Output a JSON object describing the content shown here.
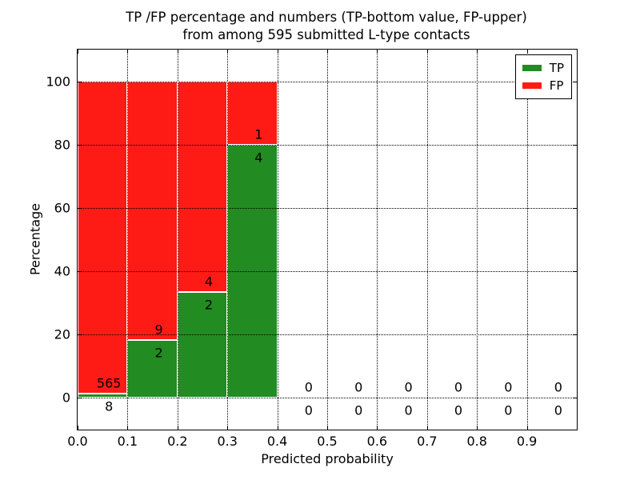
{
  "chart_data": {
    "type": "bar",
    "stacked": true,
    "normalized": "percentage",
    "title_line1": "TP /FP percentage and numbers (TP-bottom value, FP-upper)",
    "title_line2": "from among 595 submitted L-type contacts",
    "xlabel": "Predicted probability",
    "ylabel": "Percentage",
    "xlim": [
      0.0,
      1.0
    ],
    "ylim": [
      -10,
      110
    ],
    "x_tick_labels": [
      "0.0",
      "0.1",
      "0.2",
      "0.3",
      "0.4",
      "0.5",
      "0.6",
      "0.7",
      "0.8",
      "0.9"
    ],
    "x_tick_values": [
      0.0,
      0.1,
      0.2,
      0.3,
      0.4,
      0.5,
      0.6,
      0.7,
      0.8,
      0.9
    ],
    "y_tick_labels": [
      "0",
      "20",
      "40",
      "60",
      "80",
      "100"
    ],
    "y_tick_values": [
      0,
      20,
      40,
      60,
      80,
      100
    ],
    "grid": true,
    "grid_style": "dotted",
    "legend_position": "upper right",
    "legend": [
      {
        "name": "TP",
        "color": "#228b22"
      },
      {
        "name": "FP",
        "color": "#fe1b16"
      }
    ],
    "colors": {
      "tp": "#228b22",
      "fp": "#fe1b16",
      "bar_edge": "#ffffff",
      "grid": "#000000",
      "text": "#000000",
      "background": "#ffffff"
    },
    "total_contacts": 595,
    "bins": [
      {
        "x0": 0.0,
        "x1": 0.1,
        "tp_count": 8,
        "fp_count": 565,
        "tp_pct": 1.4,
        "fp_pct": 98.6
      },
      {
        "x0": 0.1,
        "x1": 0.2,
        "tp_count": 2,
        "fp_count": 9,
        "tp_pct": 18.18,
        "fp_pct": 81.82
      },
      {
        "x0": 0.2,
        "x1": 0.3,
        "tp_count": 2,
        "fp_count": 4,
        "tp_pct": 33.33,
        "fp_pct": 66.67
      },
      {
        "x0": 0.3,
        "x1": 0.4,
        "tp_count": 4,
        "fp_count": 1,
        "tp_pct": 80.0,
        "fp_pct": 20.0
      },
      {
        "x0": 0.4,
        "x1": 0.5,
        "tp_count": 0,
        "fp_count": 0,
        "tp_pct": 0,
        "fp_pct": 0
      },
      {
        "x0": 0.5,
        "x1": 0.6,
        "tp_count": 0,
        "fp_count": 0,
        "tp_pct": 0,
        "fp_pct": 0
      },
      {
        "x0": 0.6,
        "x1": 0.7,
        "tp_count": 0,
        "fp_count": 0,
        "tp_pct": 0,
        "fp_pct": 0
      },
      {
        "x0": 0.7,
        "x1": 0.8,
        "tp_count": 0,
        "fp_count": 0,
        "tp_pct": 0,
        "fp_pct": 0
      },
      {
        "x0": 0.8,
        "x1": 0.9,
        "tp_count": 0,
        "fp_count": 0,
        "tp_pct": 0,
        "fp_pct": 0
      },
      {
        "x0": 0.9,
        "x1": 1.0,
        "tp_count": 0,
        "fp_count": 0,
        "tp_pct": 0,
        "fp_pct": 0
      }
    ]
  }
}
